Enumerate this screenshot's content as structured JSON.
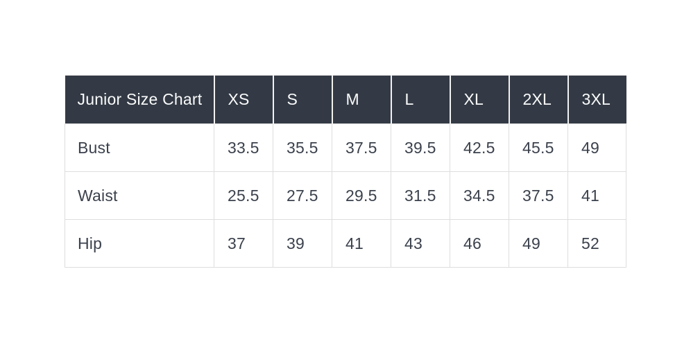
{
  "chart_data": {
    "type": "table",
    "title": "Junior Size Chart",
    "columns": [
      "XS",
      "S",
      "M",
      "L",
      "XL",
      "2XL",
      "3XL"
    ],
    "rows": [
      {
        "label": "Bust",
        "values": [
          "33.5",
          "35.5",
          "37.5",
          "39.5",
          "42.5",
          "45.5",
          "49"
        ]
      },
      {
        "label": "Waist",
        "values": [
          "25.5",
          "27.5",
          "29.5",
          "31.5",
          "34.5",
          "37.5",
          "41"
        ]
      },
      {
        "label": "Hip",
        "values": [
          "37",
          "39",
          "41",
          "43",
          "46",
          "49",
          "52"
        ]
      }
    ],
    "layout": {
      "header_position": "top-row",
      "row_label_column": true,
      "grid": "on"
    }
  },
  "colors": {
    "page_bg": "#ffffff",
    "header_bg": "#333a45",
    "header_text": "#fafbfb",
    "header_divider": "#f2f2f2",
    "body_text": "#3b414c",
    "border": "#dddddd"
  }
}
